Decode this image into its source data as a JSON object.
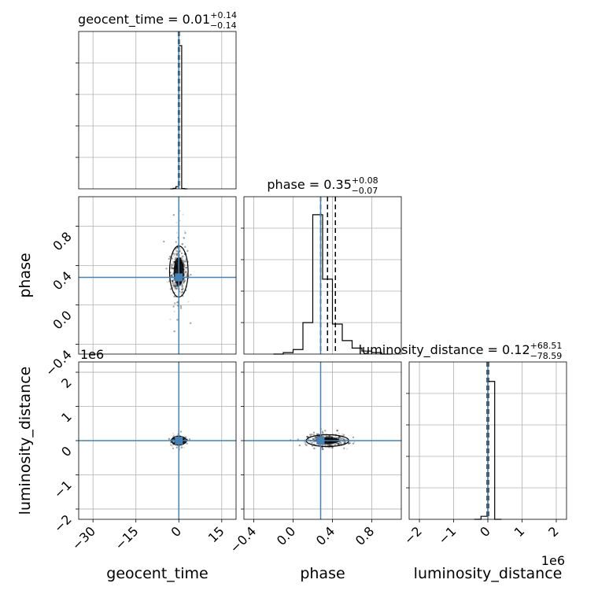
{
  "chart_data": {
    "type": "corner",
    "parameters": [
      "geocent_time",
      "phase",
      "luminosity_distance"
    ],
    "truth_color": "#4682b4",
    "truths": {
      "geocent_time": 0.0,
      "phase": 0.28,
      "luminosity_distance": 0.0
    },
    "axes": {
      "geocent_time": {
        "lim": [
          -35,
          20
        ],
        "ticks": [
          -30,
          -15,
          0,
          15
        ],
        "tick_labels": [
          "−30",
          "−15",
          "0",
          "15"
        ]
      },
      "phase": {
        "lim": [
          -0.5,
          1.1
        ],
        "ticks": [
          -0.4,
          0.0,
          0.4,
          0.8
        ],
        "tick_labels": [
          "−0.4",
          "0.0",
          "0.4",
          "0.8"
        ]
      },
      "luminosity_distance": {
        "lim": [
          -2.3,
          2.3
        ],
        "ticks": [
          -2,
          -1,
          0,
          1,
          2
        ],
        "tick_labels": [
          "−2",
          "−1",
          "0",
          "1",
          "2"
        ],
        "offset_label": "1e6"
      }
    },
    "marginals": [
      {
        "param": "geocent_time",
        "title": "geocent_time = 0.01",
        "title_plus": "+0.14",
        "title_minus": "−0.14",
        "quantiles": [
          -0.13,
          0.01,
          0.15
        ],
        "histogram": {
          "edges": [
            -3,
            -2,
            -1,
            0,
            1,
            2,
            3
          ],
          "counts": [
            0,
            3,
            14,
            910,
            2,
            0
          ],
          "ymax": 1000
        }
      },
      {
        "param": "phase",
        "title": "phase = 0.35",
        "title_plus": "+0.08",
        "title_minus": "−0.07",
        "quantiles": [
          0.28,
          0.35,
          0.43
        ],
        "histogram": {
          "edges": [
            -0.2,
            -0.1,
            0.0,
            0.1,
            0.2,
            0.3,
            0.4,
            0.5,
            0.6,
            0.7,
            0.8,
            0.9,
            1.0
          ],
          "counts": [
            0.0,
            0.01,
            0.03,
            0.21,
            0.93,
            0.5,
            0.2,
            0.09,
            0.04,
            0.02,
            0.01,
            0.0
          ],
          "ymax": 1.05
        }
      },
      {
        "param": "luminosity_distance",
        "title": "luminosity_distance = 0.12",
        "title_plus": "+68.51",
        "title_minus": "−78.59",
        "quantiles": [
          -0.02,
          0.0,
          0.02
        ],
        "histogram": {
          "edges": [
            -0.4,
            -0.2,
            0.0,
            0.2,
            0.4
          ],
          "counts": [
            0,
            0.02,
            0.92,
            0
          ],
          "ymax": 1.05
        }
      }
    ],
    "scatter_2d": [
      {
        "x": "geocent_time",
        "y": "phase",
        "center": [
          0.0,
          0.34
        ],
        "spread": [
          1.5,
          0.12
        ]
      },
      {
        "x": "geocent_time",
        "y": "luminosity_distance",
        "center": [
          0.0,
          0.0
        ],
        "spread": [
          1.2,
          0.05
        ]
      },
      {
        "x": "phase",
        "y": "luminosity_distance",
        "center": [
          0.35,
          0.0
        ],
        "spread": [
          0.1,
          0.08
        ]
      }
    ],
    "grid": true
  }
}
